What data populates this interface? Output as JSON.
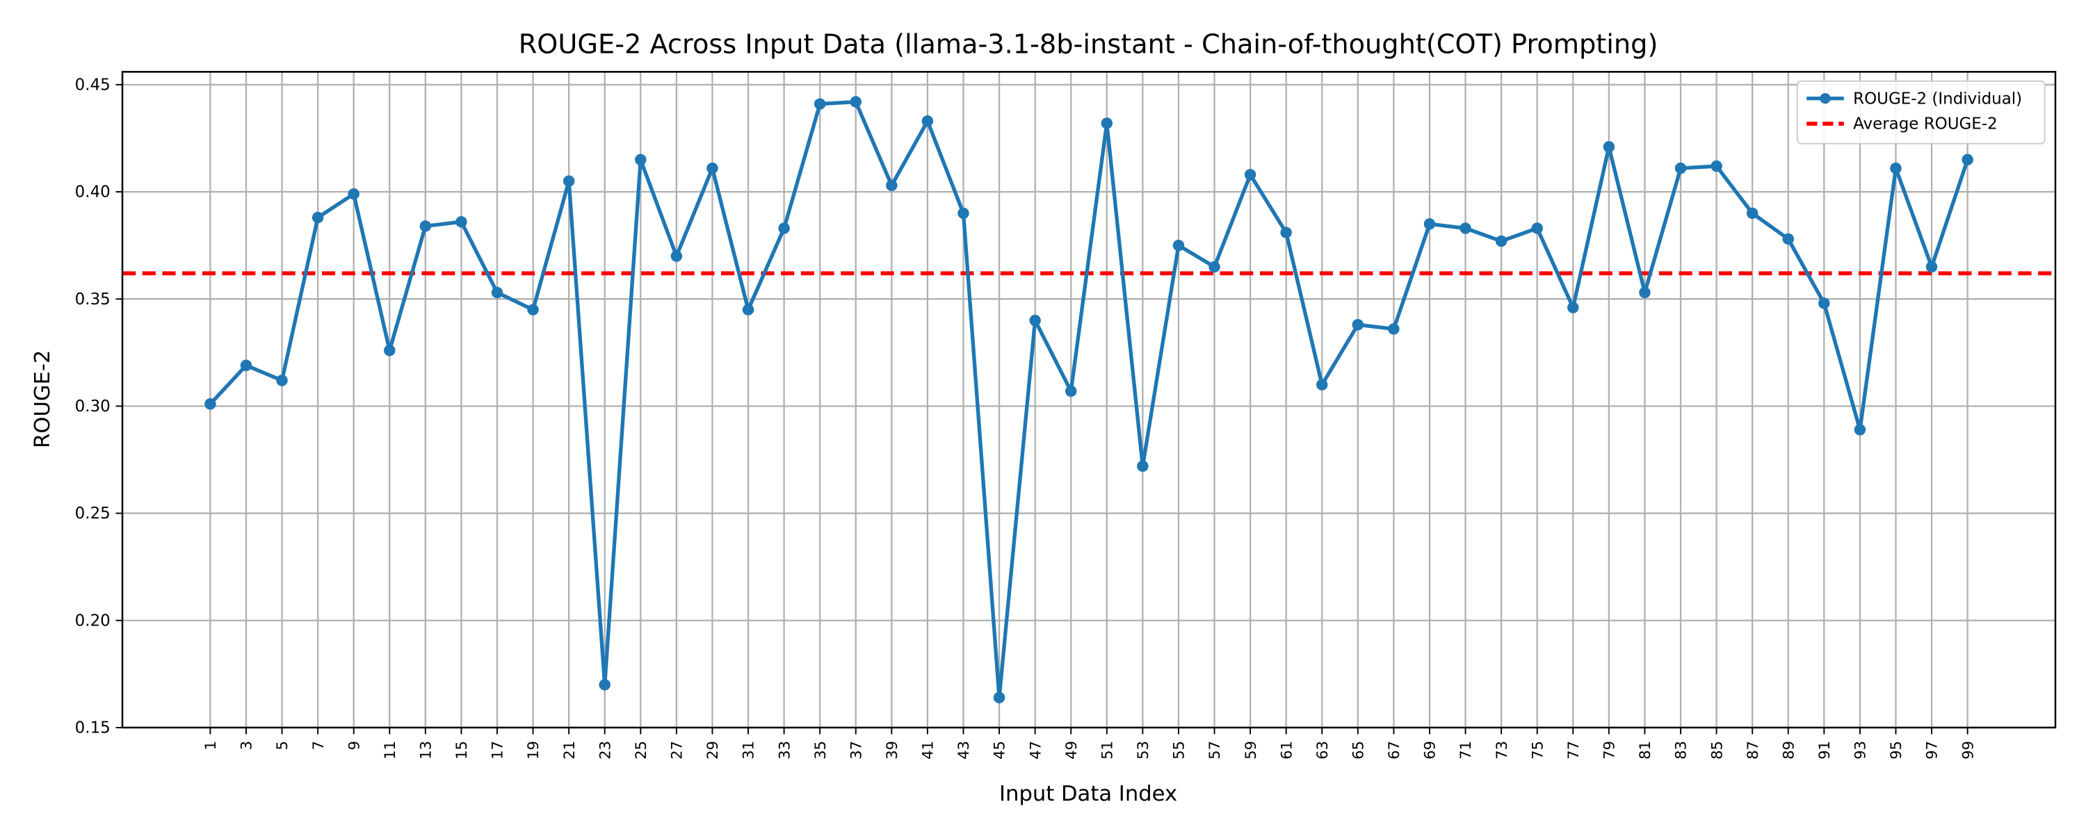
{
  "chart_data": {
    "type": "line",
    "title": "ROUGE-2 Across Input Data (llama-3.1-8b-instant - Chain-of-thought(COT) Prompting)",
    "x_label": "Input Data Index",
    "y_label": "ROUGE-2",
    "x": [
      1,
      3,
      5,
      7,
      9,
      11,
      13,
      15,
      17,
      19,
      21,
      23,
      25,
      27,
      29,
      31,
      33,
      35,
      37,
      39,
      41,
      43,
      45,
      47,
      49,
      51,
      53,
      55,
      57,
      59,
      61,
      63,
      65,
      67,
      69,
      71,
      73,
      75,
      77,
      79,
      81,
      83,
      85,
      87,
      89,
      91,
      93,
      95,
      97,
      99
    ],
    "series": [
      {
        "name": "ROUGE-2 (Individual)",
        "color": "#1f77b4",
        "values": [
          0.301,
          0.319,
          0.312,
          0.388,
          0.399,
          0.326,
          0.384,
          0.386,
          0.353,
          0.345,
          0.405,
          0.17,
          0.415,
          0.37,
          0.411,
          0.345,
          0.383,
          0.441,
          0.442,
          0.403,
          0.433,
          0.39,
          0.164,
          0.34,
          0.307,
          0.432,
          0.272,
          0.375,
          0.365,
          0.408,
          0.381,
          0.31,
          0.338,
          0.336,
          0.385,
          0.383,
          0.377,
          0.383,
          0.346,
          0.421,
          0.353,
          0.411,
          0.412,
          0.39,
          0.378,
          0.348,
          0.289,
          0.411,
          0.365,
          0.415
        ]
      }
    ],
    "average": {
      "name": "Average ROUGE-2",
      "value": 0.362,
      "color": "#ff0000"
    },
    "xlim": [
      -3.9,
      103.9
    ],
    "ylim": [
      0.15,
      0.456
    ],
    "xticks": [
      1,
      3,
      5,
      7,
      9,
      11,
      13,
      15,
      17,
      19,
      21,
      23,
      25,
      27,
      29,
      31,
      33,
      35,
      37,
      39,
      41,
      43,
      45,
      47,
      49,
      51,
      53,
      55,
      57,
      59,
      61,
      63,
      65,
      67,
      69,
      71,
      73,
      75,
      77,
      79,
      81,
      83,
      85,
      87,
      89,
      91,
      93,
      95,
      97,
      99
    ],
    "yticks": [
      {
        "value": 0.15,
        "label": "0.15"
      },
      {
        "value": 0.2,
        "label": "0.20"
      },
      {
        "value": 0.25,
        "label": "0.25"
      },
      {
        "value": 0.3,
        "label": "0.30"
      },
      {
        "value": 0.35,
        "label": "0.35"
      },
      {
        "value": 0.4,
        "label": "0.40"
      },
      {
        "value": 0.45,
        "label": "0.45"
      }
    ],
    "grid": true,
    "legend": "upper right"
  }
}
